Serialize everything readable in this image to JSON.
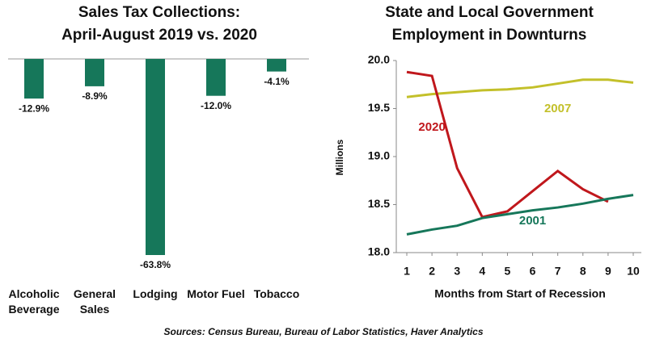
{
  "chart_data": [
    {
      "type": "bar",
      "title": "Sales Tax Collections:",
      "subtitle": "April-August 2019 vs. 2020",
      "categories": [
        "Alcoholic Beverage",
        "General Sales",
        "Lodging",
        "Motor Fuel",
        "Tobacco"
      ],
      "values": [
        -12.9,
        -8.9,
        -63.8,
        -12.0,
        -4.1
      ],
      "value_labels": [
        "-12.9%",
        "-8.9%",
        "-63.8%",
        "-12.0%",
        "-4.1%"
      ],
      "color": "#16775a"
    },
    {
      "type": "line",
      "title": "State and Local Government",
      "subtitle": "Employment in Downturns",
      "x": [
        1,
        2,
        3,
        4,
        5,
        6,
        7,
        8,
        9,
        10
      ],
      "xlim": [
        1,
        10
      ],
      "xticks": [
        1,
        2,
        3,
        4,
        5,
        6,
        7,
        8,
        9,
        10
      ],
      "ylim": [
        18,
        20
      ],
      "yticks": [
        {
          "value": 18,
          "label": "18.0"
        },
        {
          "value": 18.5,
          "label": "18.5"
        },
        {
          "value": 19,
          "label": "19.0"
        },
        {
          "value": 19.5,
          "label": "19.5"
        },
        {
          "value": 20,
          "label": "20.0"
        }
      ],
      "ylabel": "Millions",
      "xlabel": "Months from Start of Recession",
      "series": [
        {
          "name": "2007",
          "color": "#c3c02a",
          "values": [
            19.62,
            19.65,
            19.67,
            19.69,
            19.7,
            19.72,
            19.76,
            19.8,
            19.8,
            19.77
          ]
        },
        {
          "name": "2020",
          "color": "#c0171c",
          "values": [
            19.88,
            19.84,
            18.88,
            18.37,
            18.43,
            18.64,
            18.85,
            18.66,
            18.53,
            null
          ]
        },
        {
          "name": "2001",
          "color": "#16775a",
          "values": [
            18.19,
            18.24,
            18.28,
            18.36,
            18.4,
            18.44,
            18.47,
            18.51,
            18.56,
            18.6
          ]
        }
      ]
    }
  ],
  "source": "Sources: Census Bureau, Bureau of Labor Statistics, Haver Analytics"
}
